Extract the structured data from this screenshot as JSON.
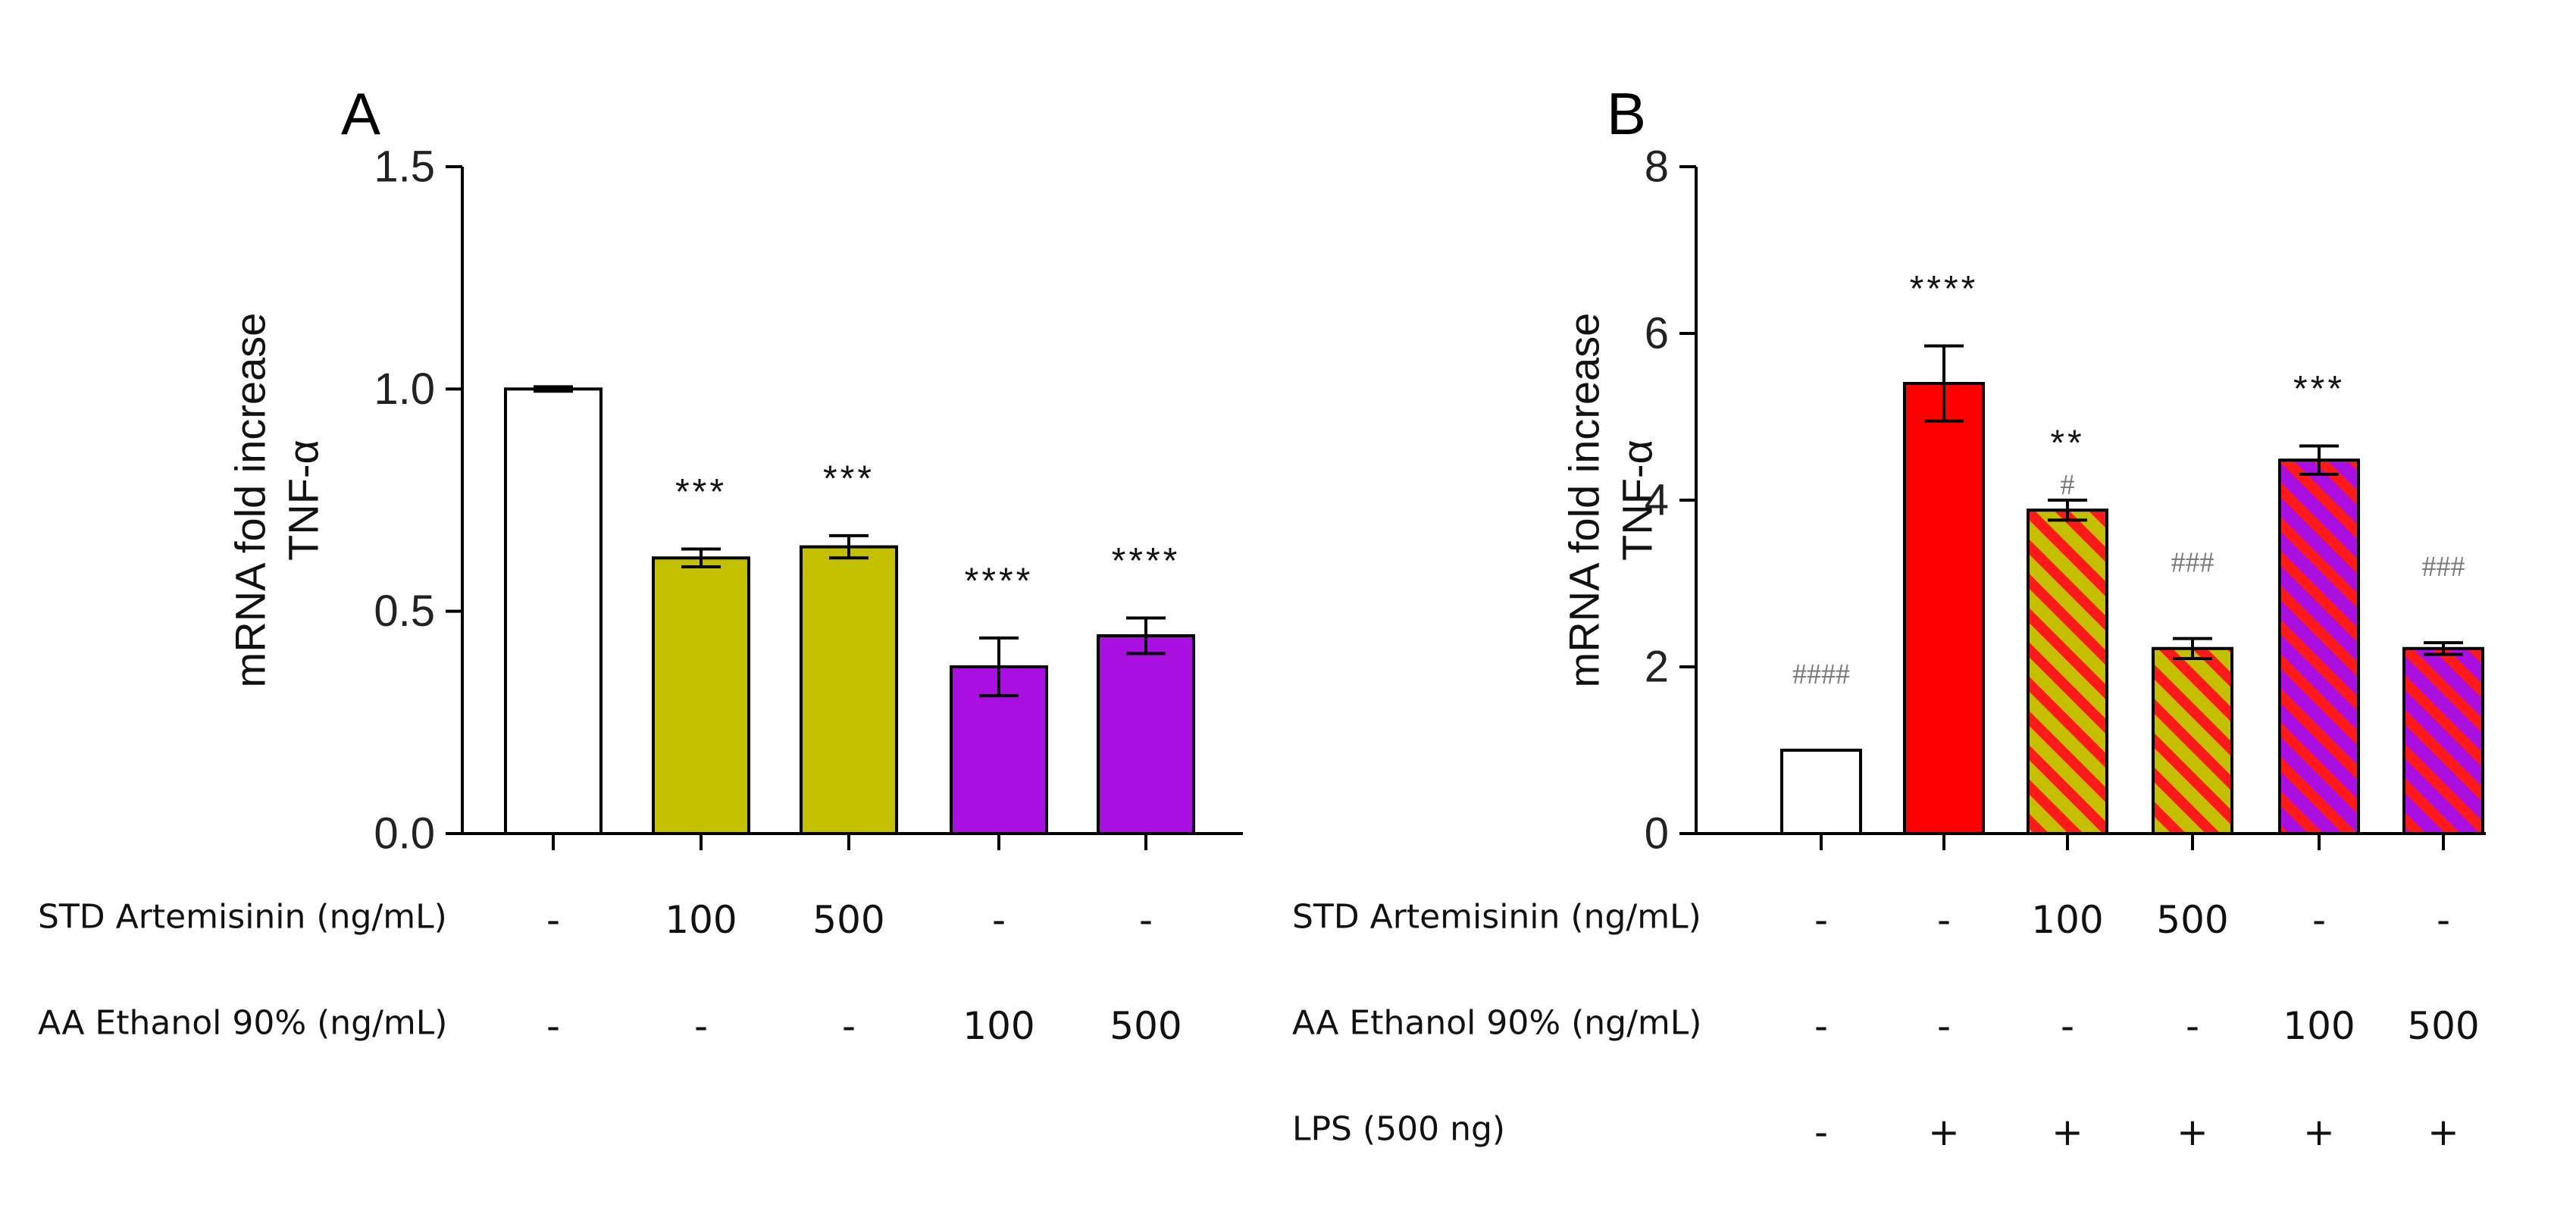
{
  "chart_data": [
    {
      "type": "bar",
      "panel": "A",
      "ylabel": [
        "mRNA fold increase",
        "TNF-α"
      ],
      "ylim": [
        0,
        1.5
      ],
      "ticks": [
        "0.0",
        "0.5",
        "1.0",
        "1.5"
      ],
      "tick_values": [
        0,
        0.5,
        1.0,
        1.5
      ],
      "bars": [
        {
          "value": 1.0,
          "error": 0.005,
          "fill": "#ffffff",
          "stripe": null,
          "sig": "",
          "hsig": ""
        },
        {
          "value": 0.62,
          "error": 0.02,
          "fill": "#c4c000",
          "stripe": null,
          "sig": "***",
          "hsig": ""
        },
        {
          "value": 0.645,
          "error": 0.025,
          "fill": "#c4c000",
          "stripe": null,
          "sig": "***",
          "hsig": ""
        },
        {
          "value": 0.375,
          "error": 0.065,
          "fill": "#a90fe0",
          "stripe": null,
          "sig": "****",
          "hsig": ""
        },
        {
          "value": 0.445,
          "error": 0.04,
          "fill": "#a90fe0",
          "stripe": null,
          "sig": "****",
          "hsig": ""
        }
      ],
      "rows": [
        {
          "label": "STD Artemisinin (ng/mL)",
          "cells": [
            "-",
            "100",
            "500",
            "-",
            "-"
          ]
        },
        {
          "label": "AA Ethanol 90% (ng/mL)",
          "cells": [
            "-",
            "-",
            "-",
            "100",
            "500"
          ]
        }
      ]
    },
    {
      "type": "bar",
      "panel": "B",
      "ylabel": [
        "mRNA fold increase",
        "TNF-α"
      ],
      "ylim": [
        0,
        8
      ],
      "ticks": [
        "0",
        "2",
        "4",
        "6",
        "8"
      ],
      "tick_values": [
        0,
        2,
        4,
        6,
        8
      ],
      "bars": [
        {
          "value": 1.0,
          "error": 0.0,
          "fill": "#ffffff",
          "stripe": null,
          "sig": "",
          "hsig": "####"
        },
        {
          "value": 5.4,
          "error": 0.45,
          "fill": "#ff0000",
          "stripe": null,
          "sig": "****",
          "hsig": ""
        },
        {
          "value": 3.88,
          "error": 0.12,
          "fill": "#c4c000",
          "stripe": "#ff1a1a",
          "sig": "**",
          "hsig": "#"
        },
        {
          "value": 2.22,
          "error": 0.12,
          "fill": "#c4c000",
          "stripe": "#ff1a1a",
          "sig": "",
          "hsig": "###"
        },
        {
          "value": 4.48,
          "error": 0.17,
          "fill": "#a90fe0",
          "stripe": "#ff1a1a",
          "sig": "***",
          "hsig": ""
        },
        {
          "value": 2.22,
          "error": 0.07,
          "fill": "#a90fe0",
          "stripe": "#ff1a1a",
          "sig": "",
          "hsig": "###"
        }
      ],
      "rows": [
        {
          "label": "STD Artemisinin (ng/mL)",
          "cells": [
            "-",
            "-",
            "100",
            "500",
            "-",
            "-"
          ]
        },
        {
          "label": "AA Ethanol 90% (ng/mL)",
          "cells": [
            "-",
            "-",
            "-",
            "-",
            "100",
            "500"
          ]
        },
        {
          "label": "LPS (500 ng)",
          "cells": [
            "-",
            "+",
            "+",
            "+",
            "+",
            "+"
          ]
        }
      ]
    }
  ]
}
